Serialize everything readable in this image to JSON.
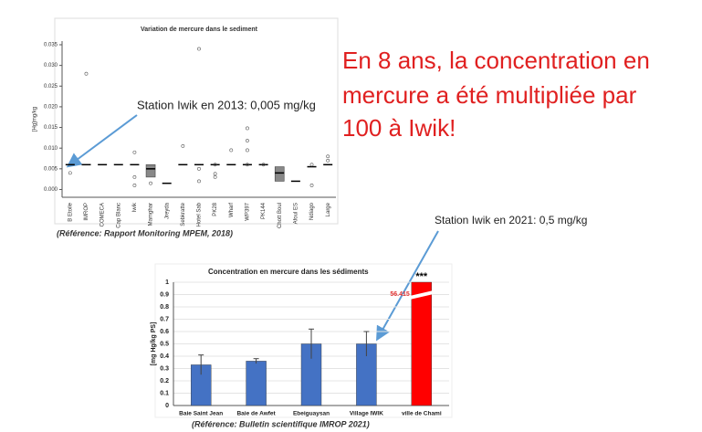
{
  "slide": {
    "headline": [
      "En 8 ans, la concentration en",
      "mercure a été multipliée par",
      "100 à Iwik!"
    ]
  },
  "chart_data": [
    {
      "type": "box",
      "title": "Variation de mercure dans le sediment",
      "y_label": "[Hg]mg/kg",
      "annotation": "Station Iwik en 2013: 0,005 mg/kg",
      "reference": "(Référence: Rapport Monitoring MPEM, 2018)",
      "categories": [
        "B Etoile",
        "IMROP",
        "COMECA",
        "Cap Blanc",
        "Iwik",
        "Mamghar",
        "Jreyda",
        "Sebkratte",
        "Hotel Sab",
        "PK28",
        "Wharf",
        "WP397",
        "PK144",
        "Chott Boul",
        "Afoul ES",
        "Ndiago",
        "Large"
      ],
      "medians": [
        0.006,
        0.006,
        0.006,
        0.006,
        0.006,
        0.005,
        0.0015,
        0.006,
        0.006,
        0.006,
        0.006,
        0.006,
        0.006,
        0.004,
        0.002,
        0.0055,
        0.006
      ],
      "q1": [
        null,
        null,
        null,
        null,
        null,
        0.003,
        null,
        null,
        null,
        null,
        null,
        null,
        null,
        0.002,
        null,
        null,
        null
      ],
      "q3": [
        null,
        null,
        null,
        null,
        null,
        0.006,
        null,
        null,
        null,
        null,
        null,
        null,
        null,
        0.0055,
        null,
        null,
        null
      ],
      "outliers": [
        [
          0.004
        ],
        [
          0.028
        ],
        [],
        [],
        [
          0.009,
          0.003,
          0.001
        ],
        [
          0.0015
        ],
        [],
        [
          0.0105
        ],
        [
          0.034,
          0.005,
          0.002
        ],
        [
          0.006,
          0.0038,
          0.003
        ],
        [
          0.0095
        ],
        [
          0.0148,
          0.0118,
          0.0095,
          0.006
        ],
        [
          0.006
        ],
        [],
        [],
        [
          0.006,
          0.001
        ],
        [
          0.008,
          0.007
        ]
      ],
      "color": "#888888",
      "ylim": [
        -0.001,
        0.035
      ],
      "yticks": [
        {
          "value": 0,
          "label": "0.000"
        },
        {
          "value": 0.005,
          "label": "0.005"
        },
        {
          "value": 0.01,
          "label": "0.010"
        },
        {
          "value": 0.015,
          "label": "0.015"
        },
        {
          "value": 0.02,
          "label": "0.020"
        },
        {
          "value": 0.025,
          "label": "0.025"
        },
        {
          "value": 0.03,
          "label": "0.030"
        },
        {
          "value": 0.035,
          "label": "0.035"
        }
      ]
    },
    {
      "type": "bar",
      "title": "Concentration en mercure dans les sédiments",
      "y_label": "[mg Hg/kg PS]",
      "annotation": "Station Iwik en 2021: 0,5 mg/kg",
      "reference": "(Référence: Bulletin scientifique IMROP 2021)",
      "significance": "***",
      "categories": [
        "Baie Saint Jean",
        "Baie de Awfet",
        "Ebeiguaysan",
        "Village IWIK",
        "ville de Chami"
      ],
      "values": [
        0.33,
        0.36,
        0.5,
        0.5,
        56.415
      ],
      "errors": [
        0.08,
        0.02,
        0.12,
        0.1,
        null
      ],
      "value_labels": [
        null,
        null,
        null,
        null,
        "56.415"
      ],
      "colors": [
        "#4472c4",
        "#4472c4",
        "#4472c4",
        "#4472c4",
        "#ff0000"
      ],
      "ylim": [
        0,
        1
      ],
      "yticks": [
        0,
        0.1,
        0.2,
        0.3,
        0.4,
        0.5,
        0.6,
        0.7,
        0.8,
        0.9,
        1
      ],
      "grid": true
    }
  ]
}
